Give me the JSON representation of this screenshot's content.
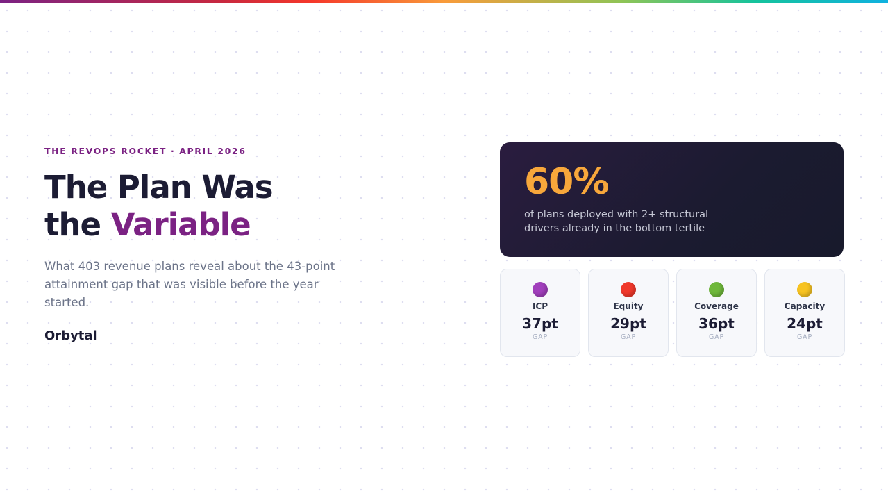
{
  "header": {
    "kicker": "THE REVOPS ROCKET · APRIL 2026",
    "title_line1": "The Plan Was",
    "title_line2_prefix": "the ",
    "title_line2_accent": "Variable",
    "subtitle": "What 403 revenue plans reveal about the 43-point attainment gap that was visible before the year started.",
    "brand": "Orbytal"
  },
  "hero": {
    "stat": "60%",
    "description": "of plans deployed with 2+ structural drivers already in the bottom tertile"
  },
  "cards": [
    {
      "label": "ICP",
      "value": "37pt",
      "unit": "GAP",
      "icon": "purple-circle-icon",
      "color": "#a13fbc"
    },
    {
      "label": "Equity",
      "value": "29pt",
      "unit": "GAP",
      "icon": "red-circle-icon",
      "color": "#f0382b"
    },
    {
      "label": "Coverage",
      "value": "36pt",
      "unit": "GAP",
      "icon": "green-circle-icon",
      "color": "#6fb83b"
    },
    {
      "label": "Capacity",
      "value": "24pt",
      "unit": "GAP",
      "icon": "yellow-circle-icon",
      "color": "#f7c321"
    }
  ]
}
